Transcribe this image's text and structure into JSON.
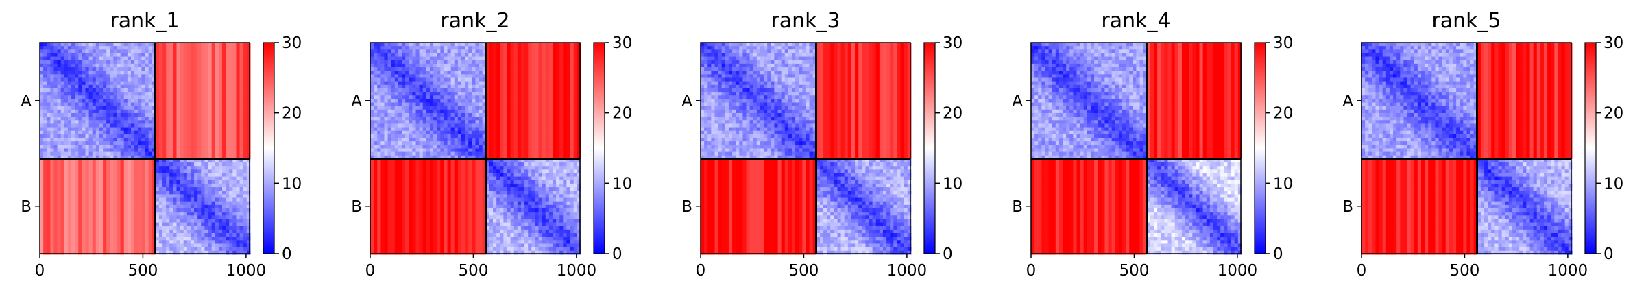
{
  "chart_data": [
    {
      "type": "heatmap",
      "title": "rank_1",
      "chains": [
        "A",
        "B"
      ],
      "chain_break": 560,
      "length": 1017,
      "x_ticks": [
        0,
        500,
        1000
      ],
      "x_tick_labels": [
        "0",
        "500",
        "1000"
      ],
      "colorbar": {
        "min": 0,
        "max": 30,
        "ticks": [
          0,
          10,
          20,
          30
        ],
        "tick_labels": [
          "0",
          "10",
          "20",
          "30"
        ],
        "colormap": "bwr"
      },
      "block_values": {
        "AA": 6,
        "AB": 25,
        "BA": 24,
        "BB": 7
      }
    },
    {
      "type": "heatmap",
      "title": "rank_2",
      "chains": [
        "A",
        "B"
      ],
      "chain_break": 560,
      "length": 1017,
      "x_ticks": [
        0,
        500,
        1000
      ],
      "x_tick_labels": [
        "0",
        "500",
        "1000"
      ],
      "colorbar": {
        "min": 0,
        "max": 30,
        "ticks": [
          0,
          10,
          20,
          30
        ],
        "tick_labels": [
          "0",
          "10",
          "20",
          "30"
        ],
        "colormap": "bwr"
      },
      "block_values": {
        "AA": 6,
        "AB": 28,
        "BA": 29,
        "BB": 7
      }
    },
    {
      "type": "heatmap",
      "title": "rank_3",
      "chains": [
        "A",
        "B"
      ],
      "chain_break": 560,
      "length": 1017,
      "x_ticks": [
        0,
        500,
        1000
      ],
      "x_tick_labels": [
        "0",
        "500",
        "1000"
      ],
      "colorbar": {
        "min": 0,
        "max": 30,
        "ticks": [
          0,
          10,
          20,
          30
        ],
        "tick_labels": [
          "0",
          "10",
          "20",
          "30"
        ],
        "colormap": "bwr"
      },
      "block_values": {
        "AA": 6,
        "AB": 28,
        "BA": 29,
        "BB": 7
      }
    },
    {
      "type": "heatmap",
      "title": "rank_4",
      "chains": [
        "A",
        "B"
      ],
      "chain_break": 560,
      "length": 1017,
      "x_ticks": [
        0,
        500,
        1000
      ],
      "x_tick_labels": [
        "0",
        "500",
        "1000"
      ],
      "colorbar": {
        "min": 0,
        "max": 30,
        "ticks": [
          0,
          10,
          20,
          30
        ],
        "tick_labels": [
          "0",
          "10",
          "20",
          "30"
        ],
        "colormap": "bwr"
      },
      "block_values": {
        "AA": 6,
        "AB": 28,
        "BA": 29,
        "BB": 9
      }
    },
    {
      "type": "heatmap",
      "title": "rank_5",
      "chains": [
        "A",
        "B"
      ],
      "chain_break": 560,
      "length": 1017,
      "x_ticks": [
        0,
        500,
        1000
      ],
      "x_tick_labels": [
        "0",
        "500",
        "1000"
      ],
      "colorbar": {
        "min": 0,
        "max": 30,
        "ticks": [
          0,
          10,
          20,
          30
        ],
        "tick_labels": [
          "0",
          "10",
          "20",
          "30"
        ],
        "colormap": "bwr"
      },
      "block_values": {
        "AA": 6,
        "AB": 28,
        "BA": 29,
        "BB": 7
      }
    }
  ]
}
